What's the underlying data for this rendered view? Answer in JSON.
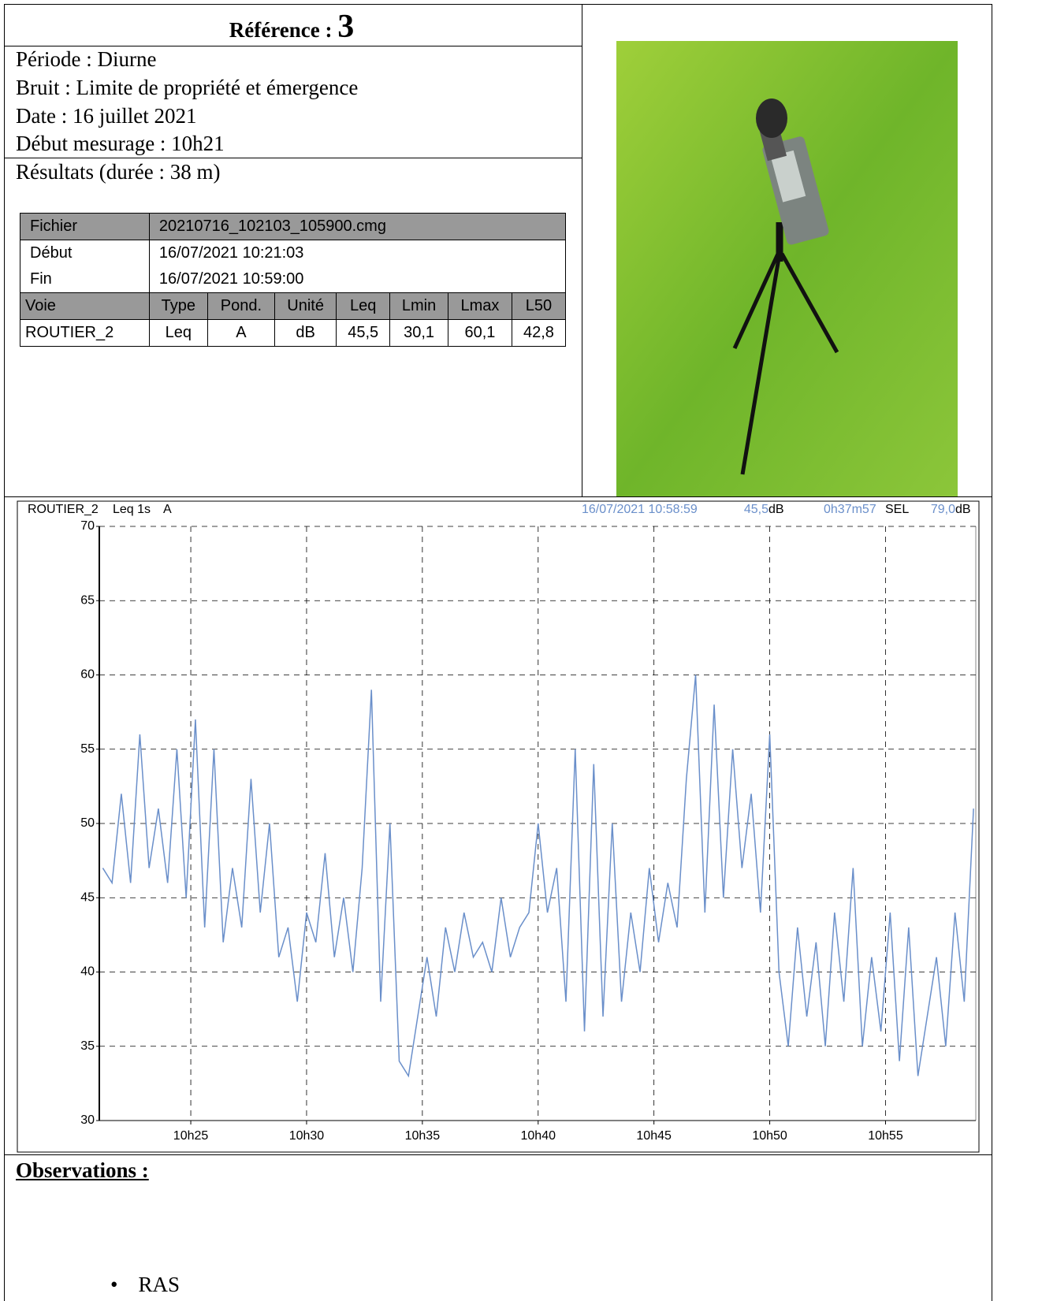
{
  "reference": {
    "label": "Référence :",
    "number": "3"
  },
  "info": [
    "Période : Diurne",
    "Bruit : Limite de propriété et émergence",
    "Date : 16 juillet 2021",
    "Début mesurage : 10h21"
  ],
  "results": "Résultats (durée : 38 m)",
  "table": {
    "file": [
      "Fichier",
      "20210716_102103_105900.cmg"
    ],
    "start": [
      "Début",
      "16/07/2021 10:21:03"
    ],
    "end": [
      "Fin",
      "16/07/2021 10:59:00"
    ],
    "header": [
      "Voie",
      "Type",
      "Pond.",
      "Unité",
      "Leq",
      "Lmin",
      "Lmax",
      "L50"
    ],
    "row": [
      "ROUTIER_2",
      "Leq",
      "A",
      "dB",
      "45,5",
      "30,1",
      "60,1",
      "42,8"
    ]
  },
  "chart_data": {
    "type": "line",
    "info": {
      "channel": "ROUTIER_2",
      "measure": "Leq 1s",
      "weighting": "A",
      "timestamp": "16/07/2021 10:58:59",
      "level": "45,5",
      "level_unit": "dB",
      "duration": "0h37m57",
      "sel_label": "SEL",
      "sel": "79,0",
      "sel_unit": "dB"
    },
    "color": "#6a8fca",
    "x": [
      21.2,
      21.6,
      22.0,
      22.4,
      22.8,
      23.2,
      23.6,
      24.0,
      24.4,
      24.8,
      25.2,
      25.6,
      26.0,
      26.4,
      26.8,
      27.2,
      27.6,
      28.0,
      28.4,
      28.8,
      29.2,
      29.6,
      30.0,
      30.4,
      30.8,
      31.2,
      31.6,
      32.0,
      32.4,
      32.8,
      33.2,
      33.6,
      34.0,
      34.4,
      34.8,
      35.2,
      35.6,
      36.0,
      36.4,
      36.8,
      37.2,
      37.6,
      38.0,
      38.4,
      38.8,
      39.2,
      39.6,
      40.0,
      40.4,
      40.8,
      41.2,
      41.6,
      42.0,
      42.4,
      42.8,
      43.2,
      43.6,
      44.0,
      44.4,
      44.8,
      45.2,
      45.6,
      46.0,
      46.4,
      46.8,
      47.2,
      47.6,
      48.0,
      48.4,
      48.8,
      49.2,
      49.6,
      50.0,
      50.4,
      50.8,
      51.2,
      51.6,
      52.0,
      52.4,
      52.8,
      53.2,
      53.6,
      54.0,
      54.4,
      54.8,
      55.2,
      55.6,
      56.0,
      56.4,
      56.8,
      57.2,
      57.6,
      58.0,
      58.4,
      58.8
    ],
    "values": [
      47,
      46,
      52,
      46,
      56,
      47,
      51,
      46,
      55,
      45,
      57,
      43,
      55,
      42,
      47,
      43,
      53,
      44,
      50,
      41,
      43,
      38,
      44,
      42,
      48,
      41,
      45,
      40,
      47,
      59,
      38,
      50,
      34,
      33,
      37,
      41,
      37,
      43,
      40,
      44,
      41,
      42,
      40,
      45,
      41,
      43,
      44,
      50,
      44,
      47,
      38,
      55,
      36,
      54,
      37,
      50,
      38,
      44,
      40,
      47,
      42,
      46,
      43,
      53,
      60,
      44,
      58,
      45,
      55,
      47,
      52,
      44,
      56,
      40,
      35,
      43,
      37,
      42,
      35,
      44,
      38,
      47,
      35,
      41,
      36,
      44,
      34,
      43,
      33,
      37,
      41,
      35,
      44,
      38,
      51
    ],
    "xlim": [
      21.05,
      59.0
    ],
    "ylim": [
      30,
      70
    ],
    "xticks": [
      {
        "value": 25,
        "label": "10h25"
      },
      {
        "value": 30,
        "label": "10h30"
      },
      {
        "value": 35,
        "label": "10h35"
      },
      {
        "value": 40,
        "label": "10h40"
      },
      {
        "value": 45,
        "label": "10h45"
      },
      {
        "value": 50,
        "label": "10h50"
      },
      {
        "value": 55,
        "label": "10h55"
      }
    ],
    "yticks": [
      30,
      35,
      40,
      45,
      50,
      55,
      60,
      65,
      70
    ],
    "grid": true
  },
  "observations": {
    "title": "Observations :",
    "items": [
      "RAS"
    ]
  }
}
